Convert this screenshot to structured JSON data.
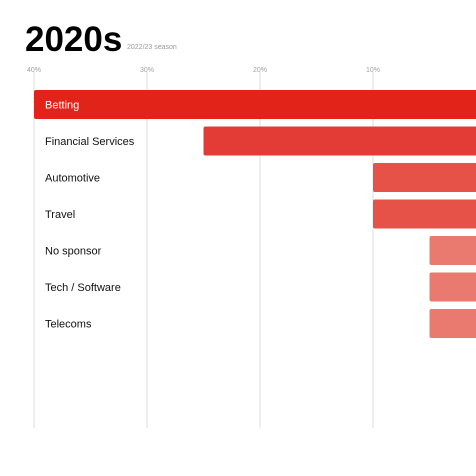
{
  "header": {
    "title": "2020s",
    "subtitle": "2022/23 season"
  },
  "colors": {
    "bar_primary": "#e2231a",
    "bar_label_on_primary": "#ffffff",
    "label_default": "#111111",
    "grid": "#dddddd"
  },
  "chart_data": {
    "type": "bar",
    "orientation": "horizontal",
    "x_axis_direction": "right-to-left",
    "title": "2020s",
    "subtitle": "2022/23 season",
    "xlabel": "",
    "ylabel": "",
    "xlim": [
      0,
      40
    ],
    "xticks": [
      40,
      30,
      20,
      10
    ],
    "xtick_labels": [
      "40%",
      "30%",
      "20%",
      "10%"
    ],
    "grid": true,
    "categories": [
      "Betting",
      "Financial Services",
      "Automotive",
      "Travel",
      "No sponsor",
      "Tech / Software",
      "Telecoms"
    ],
    "values": [
      40,
      25,
      10,
      10,
      5,
      5,
      5
    ],
    "bar_colors": [
      "#e2231a",
      "#e33b35",
      "#e65248",
      "#e65248",
      "#ea7a70",
      "#ea7a70",
      "#ea7a70"
    ]
  }
}
